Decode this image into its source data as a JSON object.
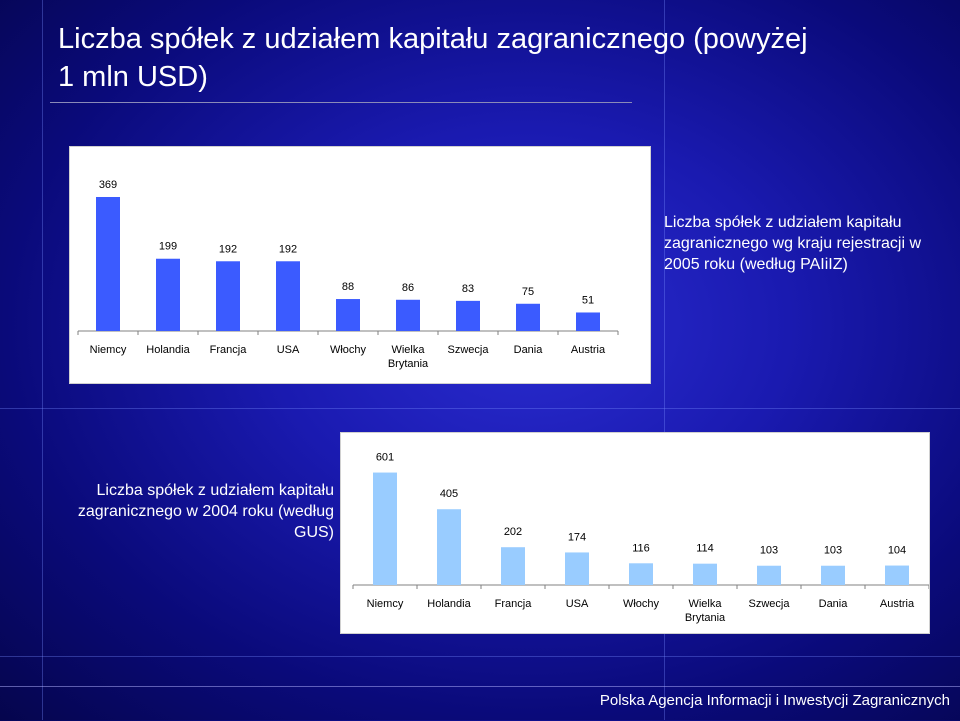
{
  "slide": {
    "title": "Liczba spółek z udziałem kapitału zagranicznego (powyżej 1 mln USD)",
    "footer": "Polska Agencja Informacji i Inwestycji Zagranicznych"
  },
  "colors": {
    "background": "#1a1ab0",
    "bar1": "#3b5bff",
    "bar2": "#99ccff"
  },
  "chart_data": [
    {
      "type": "bar",
      "caption": "Liczba spółek z udziałem kapitału zagranicznego wg kraju rejestracji w 2005 roku (według PAIiIZ)",
      "categories": [
        "Niemcy",
        "Holandia",
        "Francja",
        "USA",
        "Włochy",
        "Wielka Brytania",
        "Szwecja",
        "Dania",
        "Austria"
      ],
      "values": [
        369,
        199,
        192,
        192,
        88,
        86,
        83,
        75,
        51
      ],
      "data_labels": [
        "369",
        "199",
        "192",
        "192",
        "88",
        "86",
        "83",
        "75",
        "51"
      ],
      "ylim": [
        0,
        380
      ],
      "grid": false,
      "bar_color": "#3b5bff"
    },
    {
      "type": "bar",
      "caption": "Liczba spółek z udziałem kapitału zagranicznego w 2004 roku (według GUS)",
      "categories": [
        "Niemcy",
        "Holandia",
        "Francja",
        "USA",
        "Włochy",
        "Wielka Brytania",
        "Szwecja",
        "Dania",
        "Austria"
      ],
      "values": [
        601,
        405,
        202,
        174,
        116,
        114,
        103,
        103,
        104
      ],
      "data_labels": [
        "601",
        "405",
        "202",
        "174",
        "116",
        "114",
        "103",
        "103",
        "104"
      ],
      "ylim": [
        0,
        620
      ],
      "grid": false,
      "bar_color": "#99ccff"
    }
  ]
}
